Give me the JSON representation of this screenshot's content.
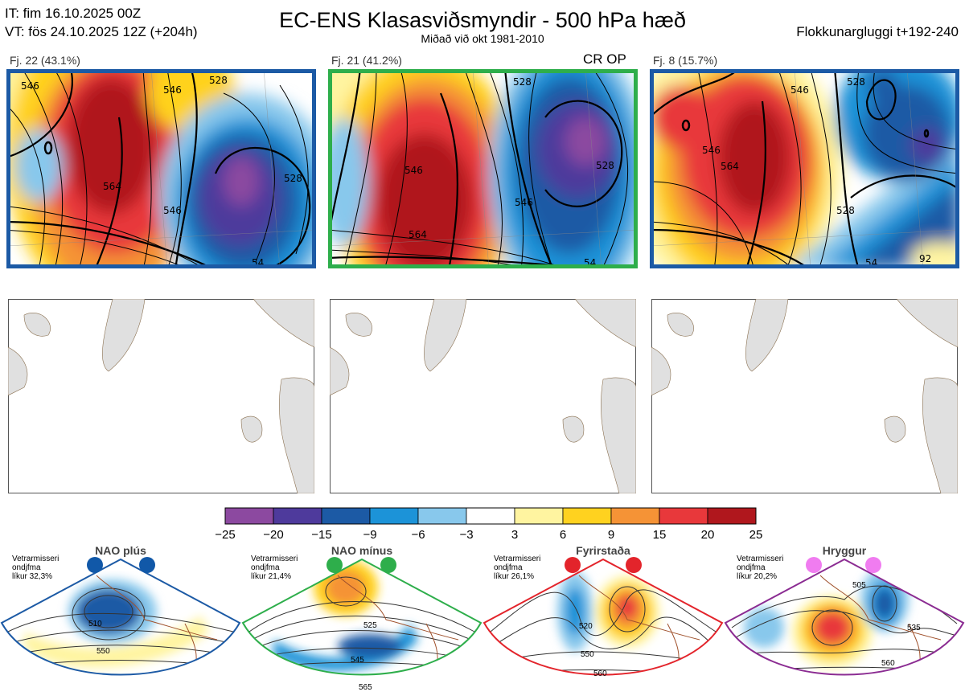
{
  "header": {
    "it_line": "IT: fim 16.10.2025 00Z",
    "vt_line": "VT: fös 24.10.2025 12Z  (+204h)",
    "title": "EC-ENS Klasasviðsmyndir - 500 hPa hæð",
    "subtitle": "Miðað við okt 1981-2010",
    "window_label": "Flokkunargluggi t+192-240"
  },
  "clusters": [
    {
      "label": "Fj. 22 (43.1%)",
      "border_color": "#1c5aa5",
      "cr_op": "",
      "contour_labels": [
        "546",
        "564",
        "546",
        "528",
        "546",
        "528",
        "54"
      ]
    },
    {
      "label": "Fj. 21 (41.2%)",
      "border_color": "#2eae4b",
      "cr_op": "CR OP",
      "contour_labels": [
        "546",
        "564",
        "528",
        "546",
        "54",
        "528"
      ]
    },
    {
      "label": "Fj. 8 (15.7%)",
      "border_color": "#1c5aa5",
      "cr_op": "",
      "contour_labels": [
        "546",
        "564",
        "546",
        "528",
        "54",
        "528",
        "92"
      ]
    }
  ],
  "colorbar": {
    "ticks": [
      "−25",
      "−20",
      "−15",
      "−9",
      "−6",
      "−3",
      "3",
      "6",
      "9",
      "15",
      "20",
      "25"
    ],
    "colors": [
      "#8c49a0",
      "#4e3a9c",
      "#1c5aa5",
      "#1c93d8",
      "#88c8ec",
      "#ffffff",
      "#fff4a0",
      "#ffd21f",
      "#f59336",
      "#e8383b",
      "#b0171d"
    ]
  },
  "regimes": [
    {
      "name": "NAO plús",
      "border": "#1c5aa5",
      "dot_color": "#1158a8",
      "line1": "Vetrarmisseri",
      "line2": "ondjfma",
      "line3": "líkur 32,3%",
      "contour_labels": [
        "510",
        "550"
      ]
    },
    {
      "name": "NAO mínus",
      "border": "#2eae4b",
      "dot_color": "#2eae4b",
      "line1": "Vetrarmisseri",
      "line2": "ondjfma",
      "line3": "líkur 21,4%",
      "contour_labels": [
        "525",
        "545",
        "565"
      ]
    },
    {
      "name": "Fyrirstaða",
      "border": "#e3242b",
      "dot_color": "#e3242b",
      "line1": "Vetrarmisseri",
      "line2": "ondjfma",
      "line3": "líkur 26,1%",
      "contour_labels": [
        "520",
        "550",
        "560"
      ]
    },
    {
      "name": "Hryggur",
      "border": "#8b2c92",
      "dot_color": "#f07cf0",
      "line1": "Vetrarmisseri",
      "line2": "ondjfma",
      "line3": "líkur 20,2%",
      "contour_labels": [
        "505",
        "535",
        "560"
      ]
    }
  ]
}
